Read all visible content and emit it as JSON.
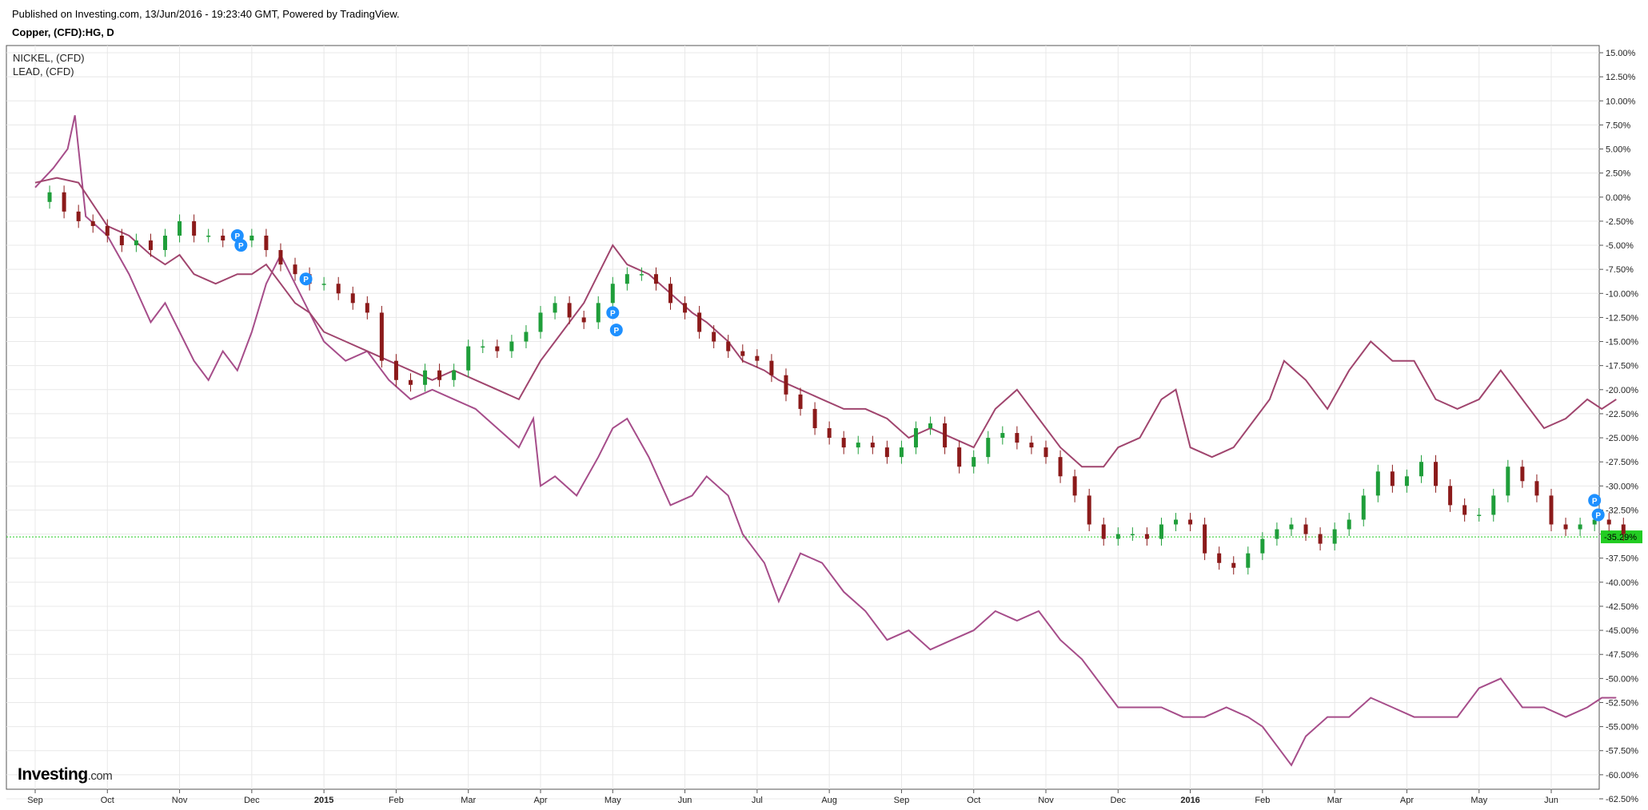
{
  "header": {
    "published": "Published on Investing.com, 13/Jun/2016 - 19:23:40 GMT, Powered by TradingView.",
    "symbol": "Copper, (CFD):HG, D"
  },
  "legend": {
    "items": [
      "NICKEL,  (CFD)",
      "LEAD,  (CFD)"
    ]
  },
  "logo": {
    "main": "Investing",
    "suffix": ".com"
  },
  "colors": {
    "up": "#1f9e3a",
    "down": "#8b1a1a",
    "nickel": "#a64d8a",
    "lead": "#a0456e",
    "current": "#22cc22",
    "marker": "#1e90ff",
    "grid": "#e8e8e8"
  },
  "chart_data": {
    "type": "line",
    "ylim": [
      -62.5,
      15.0
    ],
    "y_ticks": [
      "15.00%",
      "12.50%",
      "10.00%",
      "7.50%",
      "5.00%",
      "2.50%",
      "0.00%",
      "-2.50%",
      "-5.00%",
      "-7.50%",
      "-10.00%",
      "-12.50%",
      "-15.00%",
      "-17.50%",
      "-20.00%",
      "-22.50%",
      "-25.00%",
      "-27.50%",
      "-30.00%",
      "-32.50%",
      "-35.00%",
      "-37.50%",
      "-40.00%",
      "-42.50%",
      "-45.00%",
      "-47.50%",
      "-50.00%",
      "-52.50%",
      "-55.00%",
      "-57.50%",
      "-60.00%",
      "-62.50%"
    ],
    "x_ticks": [
      "Sep",
      "Oct",
      "Nov",
      "Dec",
      "2015",
      "Feb",
      "Mar",
      "Apr",
      "May",
      "Jun",
      "Jul",
      "Aug",
      "Sep",
      "Oct",
      "Nov",
      "Dec",
      "2016",
      "Feb",
      "Mar",
      "Apr",
      "May",
      "Jun"
    ],
    "bold_x_ticks": [
      "2015",
      "2016"
    ],
    "current_value": -35.29,
    "current_label": "-35.29%",
    "marker_label": "P",
    "series": [
      {
        "name": "NICKEL,  (CFD)",
        "style": "line",
        "points": [
          [
            0,
            1.0
          ],
          [
            0.25,
            3.0
          ],
          [
            0.45,
            5.0
          ],
          [
            0.55,
            8.5
          ],
          [
            0.7,
            -2
          ],
          [
            1.0,
            -4
          ],
          [
            1.3,
            -8
          ],
          [
            1.6,
            -13
          ],
          [
            1.8,
            -11
          ],
          [
            2.0,
            -14
          ],
          [
            2.2,
            -17
          ],
          [
            2.4,
            -19
          ],
          [
            2.6,
            -16
          ],
          [
            2.8,
            -18
          ],
          [
            3.0,
            -14
          ],
          [
            3.2,
            -9
          ],
          [
            3.4,
            -6
          ],
          [
            3.6,
            -9
          ],
          [
            3.8,
            -12
          ],
          [
            4.0,
            -15
          ],
          [
            4.3,
            -17
          ],
          [
            4.6,
            -16
          ],
          [
            4.9,
            -19
          ],
          [
            5.2,
            -21
          ],
          [
            5.5,
            -20
          ],
          [
            5.8,
            -21
          ],
          [
            6.1,
            -22
          ],
          [
            6.4,
            -24
          ],
          [
            6.7,
            -26
          ],
          [
            6.9,
            -23
          ],
          [
            7.0,
            -30
          ],
          [
            7.2,
            -29
          ],
          [
            7.5,
            -31
          ],
          [
            7.8,
            -27
          ],
          [
            8.0,
            -24
          ],
          [
            8.2,
            -23
          ],
          [
            8.5,
            -27
          ],
          [
            8.8,
            -32
          ],
          [
            9.1,
            -31
          ],
          [
            9.3,
            -29
          ],
          [
            9.6,
            -31
          ],
          [
            9.8,
            -35
          ],
          [
            10.1,
            -38
          ],
          [
            10.3,
            -42
          ],
          [
            10.6,
            -37
          ],
          [
            10.9,
            -38
          ],
          [
            11.2,
            -41
          ],
          [
            11.5,
            -43
          ],
          [
            11.8,
            -46
          ],
          [
            12.1,
            -45
          ],
          [
            12.4,
            -47
          ],
          [
            12.7,
            -46
          ],
          [
            13.0,
            -45
          ],
          [
            13.3,
            -43
          ],
          [
            13.6,
            -44
          ],
          [
            13.9,
            -43
          ],
          [
            14.2,
            -46
          ],
          [
            14.5,
            -48
          ],
          [
            14.8,
            -51
          ],
          [
            15.0,
            -53
          ],
          [
            15.3,
            -53
          ],
          [
            15.6,
            -53
          ],
          [
            15.9,
            -54
          ],
          [
            16.2,
            -54
          ],
          [
            16.5,
            -53
          ],
          [
            16.8,
            -54
          ],
          [
            17.0,
            -55
          ],
          [
            17.2,
            -57
          ],
          [
            17.4,
            -59
          ],
          [
            17.6,
            -56
          ],
          [
            17.9,
            -54
          ],
          [
            18.2,
            -54
          ],
          [
            18.5,
            -52
          ],
          [
            18.8,
            -53
          ],
          [
            19.1,
            -54
          ],
          [
            19.4,
            -54
          ],
          [
            19.7,
            -54
          ],
          [
            20.0,
            -51
          ],
          [
            20.3,
            -50
          ],
          [
            20.6,
            -53
          ],
          [
            20.9,
            -53
          ],
          [
            21.2,
            -54
          ],
          [
            21.5,
            -53
          ],
          [
            21.7,
            -52
          ],
          [
            21.9,
            -52
          ]
        ]
      },
      {
        "name": "LEAD,  (CFD)",
        "style": "line",
        "points": [
          [
            0,
            1.5
          ],
          [
            0.3,
            2.0
          ],
          [
            0.6,
            1.5
          ],
          [
            1.0,
            -3
          ],
          [
            1.3,
            -4
          ],
          [
            1.6,
            -6
          ],
          [
            1.8,
            -7
          ],
          [
            2.0,
            -6
          ],
          [
            2.2,
            -8
          ],
          [
            2.5,
            -9
          ],
          [
            2.8,
            -8
          ],
          [
            3.0,
            -8
          ],
          [
            3.2,
            -7
          ],
          [
            3.4,
            -9
          ],
          [
            3.6,
            -11
          ],
          [
            3.8,
            -12
          ],
          [
            4.0,
            -14
          ],
          [
            4.3,
            -15
          ],
          [
            4.6,
            -16
          ],
          [
            4.9,
            -17
          ],
          [
            5.2,
            -18
          ],
          [
            5.5,
            -19
          ],
          [
            5.8,
            -18
          ],
          [
            6.1,
            -19
          ],
          [
            6.4,
            -20
          ],
          [
            6.7,
            -21
          ],
          [
            7.0,
            -17
          ],
          [
            7.3,
            -14
          ],
          [
            7.6,
            -11
          ],
          [
            7.8,
            -8
          ],
          [
            8.0,
            -5
          ],
          [
            8.2,
            -7
          ],
          [
            8.5,
            -8
          ],
          [
            8.8,
            -10
          ],
          [
            9.1,
            -12
          ],
          [
            9.3,
            -13
          ],
          [
            9.6,
            -15
          ],
          [
            9.8,
            -17
          ],
          [
            10.1,
            -18
          ],
          [
            10.3,
            -19
          ],
          [
            10.6,
            -20
          ],
          [
            10.9,
            -21
          ],
          [
            11.2,
            -22
          ],
          [
            11.5,
            -22
          ],
          [
            11.8,
            -23
          ],
          [
            12.1,
            -25
          ],
          [
            12.4,
            -24
          ],
          [
            12.7,
            -25
          ],
          [
            13.0,
            -26
          ],
          [
            13.3,
            -22
          ],
          [
            13.6,
            -20
          ],
          [
            13.9,
            -23
          ],
          [
            14.2,
            -26
          ],
          [
            14.5,
            -28
          ],
          [
            14.8,
            -28
          ],
          [
            15.0,
            -26
          ],
          [
            15.3,
            -25
          ],
          [
            15.6,
            -21
          ],
          [
            15.8,
            -20
          ],
          [
            16.0,
            -26
          ],
          [
            16.3,
            -27
          ],
          [
            16.6,
            -26
          ],
          [
            16.9,
            -23
          ],
          [
            17.1,
            -21
          ],
          [
            17.3,
            -17
          ],
          [
            17.6,
            -19
          ],
          [
            17.9,
            -22
          ],
          [
            18.2,
            -18
          ],
          [
            18.5,
            -15
          ],
          [
            18.8,
            -17
          ],
          [
            19.1,
            -17
          ],
          [
            19.4,
            -21
          ],
          [
            19.7,
            -22
          ],
          [
            20.0,
            -21
          ],
          [
            20.3,
            -18
          ],
          [
            20.6,
            -21
          ],
          [
            20.9,
            -24
          ],
          [
            21.2,
            -23
          ],
          [
            21.5,
            -21
          ],
          [
            21.7,
            -22
          ],
          [
            21.9,
            -21
          ]
        ]
      },
      {
        "name": "",
        "style": "candles",
        "points": [
          [
            0,
            -0.5
          ],
          [
            0.2,
            0.5
          ],
          [
            0.4,
            -1.5
          ],
          [
            0.6,
            -2.5
          ],
          [
            0.8,
            -3.0
          ],
          [
            1.0,
            -4.0
          ],
          [
            1.2,
            -5.0
          ],
          [
            1.4,
            -4.5
          ],
          [
            1.6,
            -5.5
          ],
          [
            1.8,
            -4.0
          ],
          [
            2.0,
            -2.5
          ],
          [
            2.2,
            -4.0
          ],
          [
            2.4,
            -4.0
          ],
          [
            2.6,
            -4.5
          ],
          [
            2.8,
            -4.5
          ],
          [
            3.0,
            -4.0
          ],
          [
            3.2,
            -5.5
          ],
          [
            3.4,
            -7.0
          ],
          [
            3.6,
            -8.0
          ],
          [
            3.8,
            -9.0
          ],
          [
            4.0,
            -9.0
          ],
          [
            4.2,
            -10.0
          ],
          [
            4.4,
            -11.0
          ],
          [
            4.6,
            -12.0
          ],
          [
            4.8,
            -17.0
          ],
          [
            5.0,
            -19.0
          ],
          [
            5.2,
            -19.5
          ],
          [
            5.4,
            -18.0
          ],
          [
            5.6,
            -19.0
          ],
          [
            5.8,
            -18.0
          ],
          [
            6.0,
            -15.5
          ],
          [
            6.2,
            -15.5
          ],
          [
            6.4,
            -16.0
          ],
          [
            6.6,
            -15.0
          ],
          [
            6.8,
            -14.0
          ],
          [
            7.0,
            -12.0
          ],
          [
            7.2,
            -11.0
          ],
          [
            7.4,
            -12.5
          ],
          [
            7.6,
            -13.0
          ],
          [
            7.8,
            -11.0
          ],
          [
            8.0,
            -9.0
          ],
          [
            8.2,
            -8.0
          ],
          [
            8.4,
            -8.0
          ],
          [
            8.6,
            -9.0
          ],
          [
            8.8,
            -11.0
          ],
          [
            9.0,
            -12.0
          ],
          [
            9.2,
            -14.0
          ],
          [
            9.4,
            -15.0
          ],
          [
            9.6,
            -16.0
          ],
          [
            9.8,
            -16.5
          ],
          [
            10.0,
            -17.0
          ],
          [
            10.2,
            -18.5
          ],
          [
            10.4,
            -20.5
          ],
          [
            10.6,
            -22.0
          ],
          [
            10.8,
            -24.0
          ],
          [
            11.0,
            -25.0
          ],
          [
            11.2,
            -26.0
          ],
          [
            11.4,
            -25.5
          ],
          [
            11.6,
            -26.0
          ],
          [
            11.8,
            -27.0
          ],
          [
            12.0,
            -26.0
          ],
          [
            12.2,
            -24.0
          ],
          [
            12.4,
            -23.5
          ],
          [
            12.6,
            -26.0
          ],
          [
            12.8,
            -28.0
          ],
          [
            13.0,
            -27.0
          ],
          [
            13.2,
            -25.0
          ],
          [
            13.4,
            -24.5
          ],
          [
            13.6,
            -25.5
          ],
          [
            13.8,
            -26.0
          ],
          [
            14.0,
            -27.0
          ],
          [
            14.2,
            -29.0
          ],
          [
            14.4,
            -31.0
          ],
          [
            14.6,
            -34.0
          ],
          [
            14.8,
            -35.5
          ],
          [
            15.0,
            -35.0
          ],
          [
            15.2,
            -35.0
          ],
          [
            15.4,
            -35.5
          ],
          [
            15.6,
            -34.0
          ],
          [
            15.8,
            -33.5
          ],
          [
            16.0,
            -34.0
          ],
          [
            16.2,
            -37.0
          ],
          [
            16.4,
            -38.0
          ],
          [
            16.6,
            -38.5
          ],
          [
            16.8,
            -37.0
          ],
          [
            17.0,
            -35.5
          ],
          [
            17.2,
            -34.5
          ],
          [
            17.4,
            -34.0
          ],
          [
            17.6,
            -35.0
          ],
          [
            17.8,
            -36.0
          ],
          [
            18.0,
            -34.5
          ],
          [
            18.2,
            -33.5
          ],
          [
            18.4,
            -31.0
          ],
          [
            18.6,
            -28.5
          ],
          [
            18.8,
            -30.0
          ],
          [
            19.0,
            -29.0
          ],
          [
            19.2,
            -27.5
          ],
          [
            19.4,
            -30.0
          ],
          [
            19.6,
            -32.0
          ],
          [
            19.8,
            -33.0
          ],
          [
            20.0,
            -33.0
          ],
          [
            20.2,
            -31.0
          ],
          [
            20.4,
            -28.0
          ],
          [
            20.6,
            -29.5
          ],
          [
            20.8,
            -31.0
          ],
          [
            21.0,
            -34.0
          ],
          [
            21.2,
            -34.5
          ],
          [
            21.4,
            -34.0
          ],
          [
            21.6,
            -33.5
          ],
          [
            21.8,
            -34.0
          ],
          [
            22.0,
            -35.0
          ]
        ]
      }
    ],
    "markers": [
      [
        2.8,
        -4.0
      ],
      [
        2.85,
        -5.0
      ],
      [
        3.75,
        -8.5
      ],
      [
        8.0,
        -12.0
      ],
      [
        8.05,
        -13.8
      ],
      [
        21.6,
        -31.5
      ],
      [
        21.65,
        -33.0
      ]
    ]
  }
}
